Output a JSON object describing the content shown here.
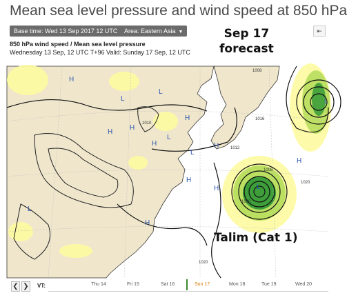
{
  "page_title": "Mean sea level pressure and wind speed at 850 hPa",
  "controls": {
    "base_time": "Base time: Wed 13 Sep 2017 12 UTC",
    "area": "Area: Eastern Asia",
    "share_icon": "share-arrow-icon"
  },
  "annotation_top": [
    "Sep 17",
    "forecast"
  ],
  "chart_subtitle": "850 hPa wind speed / Mean sea level pressure",
  "chart_info": "Wednesday 13 Sep, 12 UTC T+96 Valid: Sunday 17 Sep, 12 UTC",
  "map_labels": {
    "high": "H",
    "low": "L",
    "isobars": [
      "1008",
      "1008",
      "1010",
      "1012",
      "1016",
      "1020",
      "1020",
      "1000"
    ]
  },
  "storm_label": "Talim (Cat 1)",
  "timeline": {
    "prev_icon": "chevron-left-icon",
    "next_icon": "chevron-right-icon",
    "vt_label": "VT:",
    "days": [
      "Thu 14",
      "Fri 15",
      "Sat 16",
      "Sun 17",
      "Mon 18",
      "Tue 19",
      "Wed 20"
    ],
    "active_day": "Sun 17"
  },
  "colors": {
    "land": "#efe6cc",
    "sea": "#ffffff",
    "wind_light": "#fdfba0",
    "wind_mid": "#b7dd5c",
    "wind_strong": "#3d9e3a",
    "active_day": "#d77a00"
  }
}
